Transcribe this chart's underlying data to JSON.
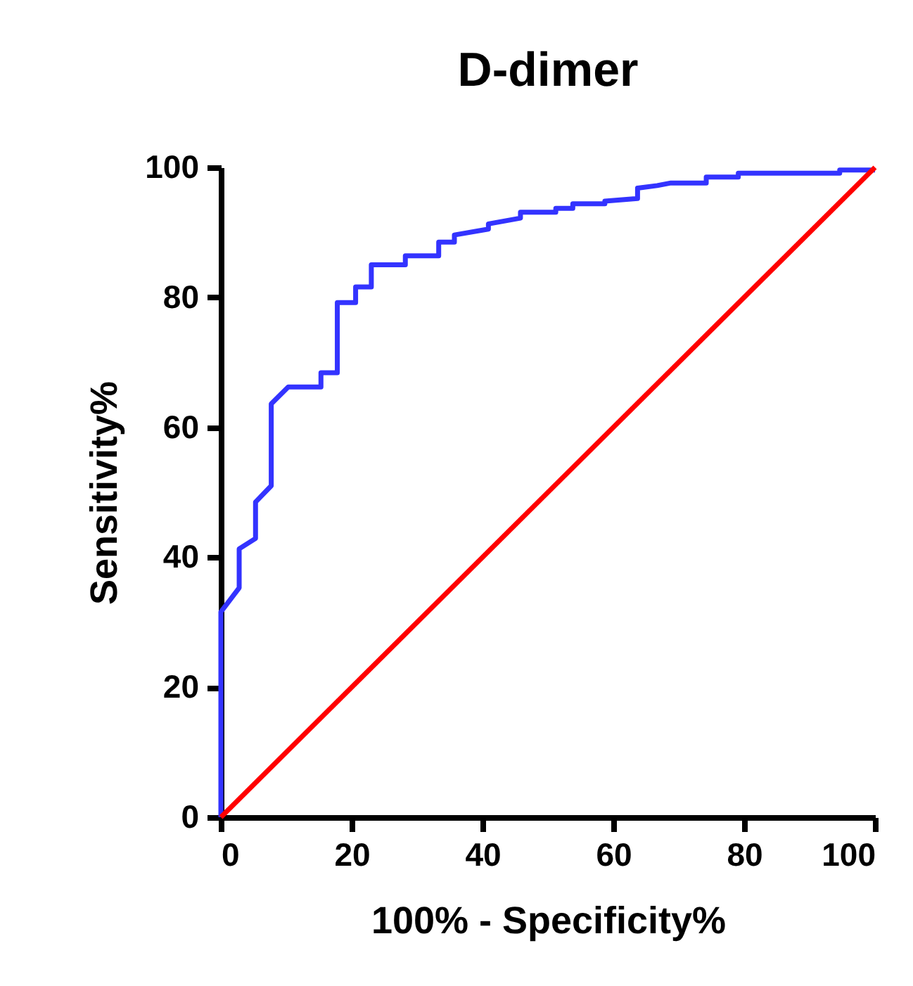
{
  "chart_data": {
    "type": "line",
    "title": "D-dimer",
    "xlabel": "100% - Specificity%",
    "ylabel": "Sensitivity%",
    "xlim": [
      0,
      100
    ],
    "ylim": [
      0,
      100
    ],
    "xticks": [
      0,
      20,
      40,
      60,
      80,
      100
    ],
    "yticks": [
      0,
      20,
      40,
      60,
      80,
      100
    ],
    "grid": false,
    "series": [
      {
        "color": "#3333ff",
        "x": [
          0,
          0,
          2.8,
          2.8,
          5.3,
          5.3,
          7.7,
          7.7,
          10.3,
          15.3,
          15.3,
          17.8,
          17.8,
          20.6,
          20.6,
          23,
          23,
          28.2,
          28.2,
          33.3,
          33.3,
          35.7,
          35.7,
          40.9,
          40.9,
          45.8,
          45.8,
          51.2,
          51.2,
          53.8,
          53.8,
          58.7,
          58.7,
          63.7,
          63.7,
          66.7,
          68.8,
          74.2,
          74.2,
          79.1,
          79.1,
          94.6,
          94.6,
          100
        ],
        "values": [
          0,
          31.6,
          35.3,
          41.3,
          42.9,
          48.5,
          51,
          63.6,
          66.2,
          66.2,
          68.4,
          68.4,
          79.2,
          79.2,
          81.6,
          81.6,
          85,
          85,
          86.4,
          86.4,
          88.5,
          88.5,
          89.6,
          90.5,
          91.3,
          92.2,
          93.1,
          93.1,
          93.7,
          93.7,
          94.4,
          94.4,
          94.8,
          95.2,
          96.8,
          97.2,
          97.6,
          97.6,
          98.5,
          98.5,
          99.1,
          99.1,
          99.6,
          99.6
        ]
      },
      {
        "color": "#ff0000",
        "x": [
          0,
          100
        ],
        "values": [
          0,
          100
        ]
      }
    ]
  }
}
